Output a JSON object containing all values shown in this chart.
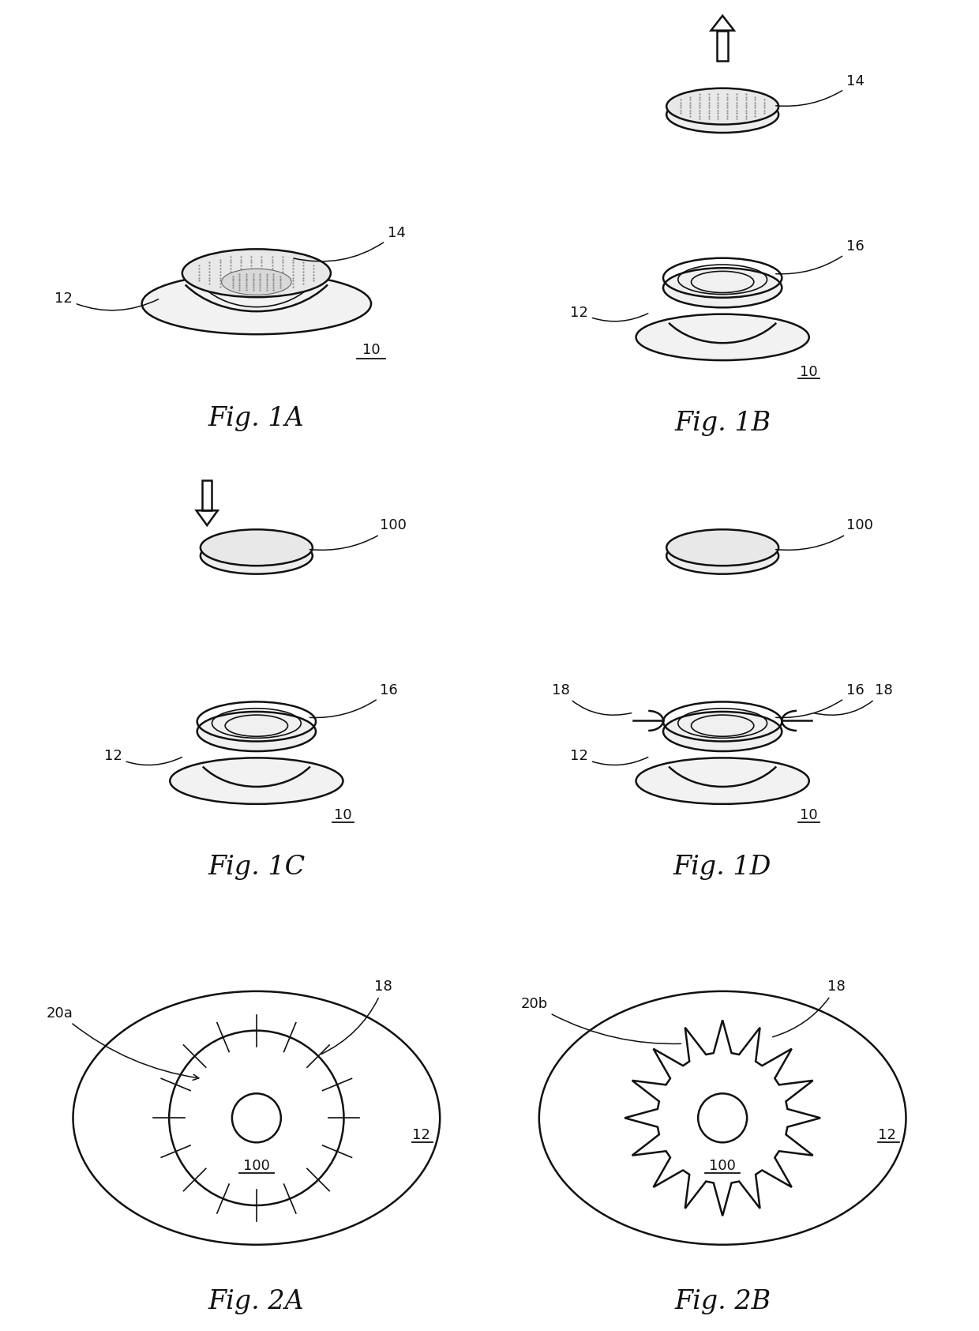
{
  "bg_color": "#ffffff",
  "line_color": "#111111",
  "fig_labels": [
    "Fig. 1A",
    "Fig. 1B",
    "Fig. 1C",
    "Fig. 1D",
    "Fig. 2A",
    "Fig. 2B"
  ],
  "label_fontsize": 24,
  "annot_fontsize": 13
}
